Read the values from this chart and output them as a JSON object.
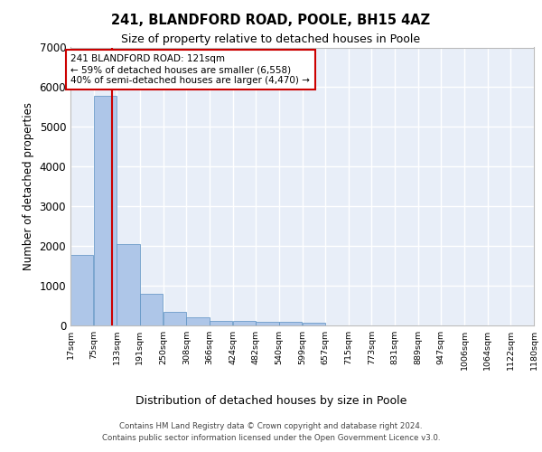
{
  "title_line1": "241, BLANDFORD ROAD, POOLE, BH15 4AZ",
  "title_line2": "Size of property relative to detached houses in Poole",
  "xlabel": "Distribution of detached houses by size in Poole",
  "ylabel": "Number of detached properties",
  "footer_line1": "Contains HM Land Registry data © Crown copyright and database right 2024.",
  "footer_line2": "Contains public sector information licensed under the Open Government Licence v3.0.",
  "annotation_line1": "241 BLANDFORD ROAD: 121sqm",
  "annotation_line2": "← 59% of detached houses are smaller (6,558)",
  "annotation_line3": "40% of semi-detached houses are larger (4,470) →",
  "property_size_sqm": 121,
  "bar_color": "#aec6e8",
  "bar_edge_color": "#5a8fc2",
  "vline_color": "#cc0000",
  "annotation_box_color": "#cc0000",
  "background_color": "#e8eef8",
  "grid_color": "#ffffff",
  "bin_edges": [
    17,
    75,
    133,
    191,
    250,
    308,
    366,
    424,
    482,
    540,
    599,
    657,
    715,
    773,
    831,
    889,
    947,
    1006,
    1064,
    1122,
    1180
  ],
  "bin_labels": [
    "17sqm",
    "75sqm",
    "133sqm",
    "191sqm",
    "250sqm",
    "308sqm",
    "366sqm",
    "424sqm",
    "482sqm",
    "540sqm",
    "599sqm",
    "657sqm",
    "715sqm",
    "773sqm",
    "831sqm",
    "889sqm",
    "947sqm",
    "1006sqm",
    "1064sqm",
    "1122sqm",
    "1180sqm"
  ],
  "bar_heights": [
    1780,
    5780,
    2060,
    800,
    340,
    200,
    120,
    110,
    100,
    90,
    75,
    0,
    0,
    0,
    0,
    0,
    0,
    0,
    0,
    0
  ],
  "ylim": [
    0,
    7000
  ],
  "yticks": [
    0,
    1000,
    2000,
    3000,
    4000,
    5000,
    6000,
    7000
  ]
}
